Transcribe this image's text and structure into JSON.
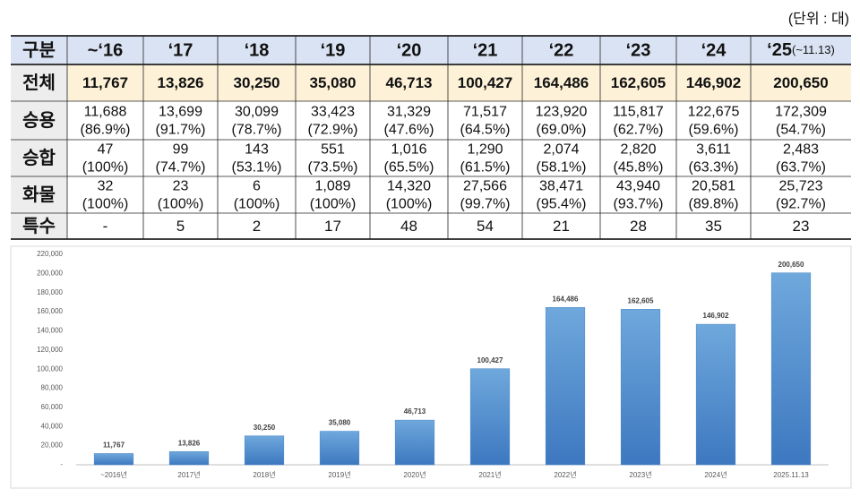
{
  "unit": "(단위 : 대)",
  "table": {
    "header": [
      "구분",
      "~‘16",
      "‘17",
      "‘18",
      "‘19",
      "‘20",
      "‘21",
      "‘22",
      "‘23",
      "‘24",
      "‘25"
    ],
    "header_note": "(~11.13)",
    "rows": [
      {
        "label": "전체",
        "cells": [
          "11,767",
          "13,826",
          "30,250",
          "35,080",
          "46,713",
          "100,427",
          "164,486",
          "162,605",
          "146,902",
          "200,650"
        ]
      },
      {
        "label": "승용",
        "cells": [
          [
            "11,688",
            "(86.9%)"
          ],
          [
            "13,699",
            "(91.7%)"
          ],
          [
            "30,099",
            "(78.7%)"
          ],
          [
            "33,423",
            "(72.9%)"
          ],
          [
            "31,329",
            "(47.6%)"
          ],
          [
            "71,517",
            "(64.5%)"
          ],
          [
            "123,920",
            "(69.0%)"
          ],
          [
            "115,817",
            "(62.7%)"
          ],
          [
            "122,675",
            "(59.6%)"
          ],
          [
            "172,309",
            "(54.7%)"
          ]
        ]
      },
      {
        "label": "승합",
        "cells": [
          [
            "47",
            "(100%)"
          ],
          [
            "99",
            "(74.7%)"
          ],
          [
            "143",
            "(53.1%)"
          ],
          [
            "551",
            "(73.5%)"
          ],
          [
            "1,016",
            "(65.5%)"
          ],
          [
            "1,290",
            "(61.5%)"
          ],
          [
            "2,074",
            "(58.1%)"
          ],
          [
            "2,820",
            "(45.8%)"
          ],
          [
            "3,611",
            "(63.3%)"
          ],
          [
            "2,483",
            "(63.7%)"
          ]
        ]
      },
      {
        "label": "화물",
        "cells": [
          [
            "32",
            "(100%)"
          ],
          [
            "23",
            "(100%)"
          ],
          [
            "6",
            "(100%)"
          ],
          [
            "1,089",
            "(100%)"
          ],
          [
            "14,320",
            "(100%)"
          ],
          [
            "27,566",
            "(99.7%)"
          ],
          [
            "38,471",
            "(95.4%)"
          ],
          [
            "43,940",
            "(93.7%)"
          ],
          [
            "20,581",
            "(89.8%)"
          ],
          [
            "25,723",
            "(92.7%)"
          ]
        ]
      },
      {
        "label": "특수",
        "cells": [
          "-",
          "5",
          "2",
          "17",
          "48",
          "54",
          "21",
          "28",
          "35",
          "23"
        ]
      }
    ]
  },
  "chart_data": {
    "type": "bar",
    "categories": [
      "~2016년",
      "2017년",
      "2018년",
      "2019년",
      "2020년",
      "2021년",
      "2022년",
      "2023년",
      "2024년",
      "2025.11.13"
    ],
    "values": [
      11767,
      13826,
      30250,
      35080,
      46713,
      100427,
      164486,
      162605,
      146902,
      200650
    ],
    "value_labels": [
      "11,767",
      "13,826",
      "30,250",
      "35,080",
      "46,713",
      "100,427",
      "164,486",
      "162,605",
      "146,902",
      "200,650"
    ],
    "color": "#4a86c8",
    "ylim": [
      0,
      220000
    ],
    "yticks": [
      {
        "value": 0,
        "label": "-"
      },
      {
        "value": 20000,
        "label": "20,000"
      },
      {
        "value": 40000,
        "label": "40,000"
      },
      {
        "value": 60000,
        "label": "60,000"
      },
      {
        "value": 80000,
        "label": "80,000"
      },
      {
        "value": 100000,
        "label": "100,000"
      },
      {
        "value": 120000,
        "label": "120,000"
      },
      {
        "value": 140000,
        "label": "140,000"
      },
      {
        "value": 160000,
        "label": "160,000"
      },
      {
        "value": 180000,
        "label": "180,000"
      },
      {
        "value": 200000,
        "label": "200,000"
      },
      {
        "value": 220000,
        "label": "220,000"
      }
    ],
    "grid": false
  }
}
